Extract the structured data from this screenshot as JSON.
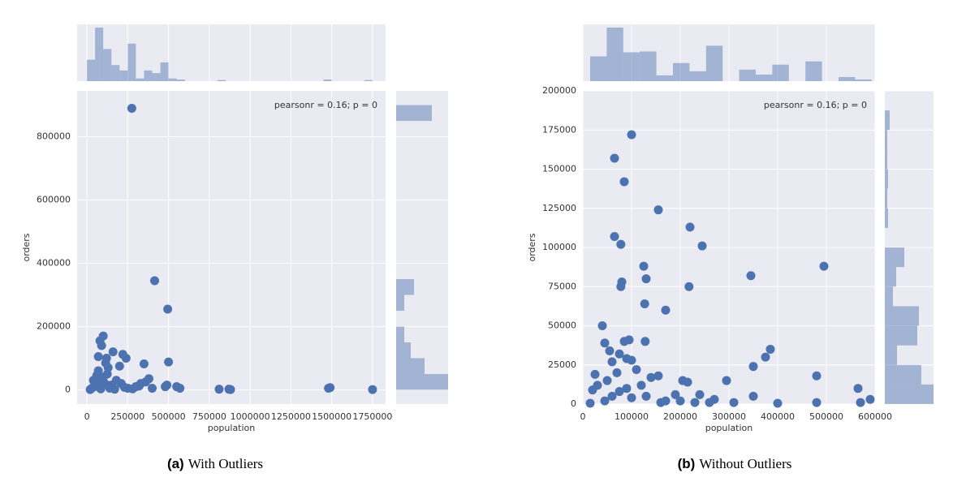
{
  "chart_data": [
    {
      "type": "scatter",
      "x_label": "population",
      "y_label": "orders",
      "annotation": "pearsonr = 0.16; p = 0",
      "caption_label": "(a)",
      "caption": "With Outliers",
      "color": "#4c72b0",
      "grid": true,
      "xlim": [
        -60000,
        1830000
      ],
      "ylim": [
        -45000,
        945000
      ],
      "xticks": [
        0,
        250000,
        500000,
        750000,
        1000000,
        1250000,
        1500000,
        1750000
      ],
      "yticks": [
        0,
        200000,
        400000,
        600000,
        800000
      ],
      "x": [
        275000,
        415000,
        495000,
        500000,
        350000,
        80000,
        100000,
        90000,
        70000,
        120000,
        160000,
        220000,
        240000,
        200000,
        60000,
        100000,
        130000,
        50000,
        30000,
        80000,
        150000,
        180000,
        210000,
        250000,
        300000,
        330000,
        380000,
        360000,
        400000,
        480000,
        490000,
        550000,
        570000,
        810000,
        870000,
        880000,
        1480000,
        1490000,
        1750000,
        20000,
        40000,
        70000,
        110000,
        140000,
        170000,
        230000,
        280000,
        320000,
        60000,
        95000,
        115000,
        125000,
        45000,
        85000
      ],
      "values": [
        890000,
        345000,
        255000,
        88000,
        82000,
        155000,
        170000,
        140000,
        105000,
        100000,
        120000,
        112000,
        100000,
        75000,
        45000,
        40000,
        70000,
        20000,
        5000,
        10000,
        15000,
        30000,
        20000,
        5000,
        10000,
        20000,
        35000,
        25000,
        5000,
        10000,
        15000,
        10000,
        5000,
        2000,
        2000,
        1000,
        5000,
        7000,
        1000,
        1000,
        30000,
        60000,
        20000,
        5000,
        2000,
        8000,
        3000,
        12000,
        25000,
        30000,
        85000,
        50000,
        10000,
        3000
      ],
      "x_hist": {
        "bins": [
          0,
          50000,
          100000,
          150000,
          200000,
          250000,
          300000,
          350000,
          400000,
          450000,
          500000,
          550000,
          600000,
          650000,
          700000,
          750000,
          800000,
          850000,
          900000,
          950000,
          1000000,
          1050000,
          1100000,
          1150000,
          1200000,
          1250000,
          1300000,
          1350000,
          1400000,
          1450000,
          1500000,
          1550000,
          1600000,
          1650000,
          1700000,
          1750000
        ],
        "counts": [
          4,
          10,
          6,
          3,
          2,
          7,
          0.5,
          2,
          1.5,
          3.5,
          0.5,
          0.3,
          0,
          0,
          0,
          0,
          0.2,
          0,
          0,
          0,
          0,
          0,
          0,
          0,
          0,
          0,
          0,
          0,
          0,
          0.3,
          0,
          0,
          0,
          0,
          0.2
        ]
      },
      "y_hist": {
        "bins": [
          0,
          50000,
          100000,
          150000,
          200000,
          250000,
          300000,
          350000,
          400000,
          450000,
          500000,
          550000,
          600000,
          650000,
          700000,
          750000,
          800000,
          850000,
          900000
        ],
        "counts": [
          64,
          35,
          18,
          10,
          0,
          10,
          22,
          0,
          0,
          0,
          0,
          0,
          0,
          0,
          0,
          0,
          0,
          44
        ]
      }
    },
    {
      "type": "scatter",
      "x_label": "population",
      "y_label": "orders",
      "annotation": "pearsonr = 0.16; p = 0",
      "caption_label": "(b)",
      "caption": "Without Outliers",
      "color": "#4c72b0",
      "grid": true,
      "xlim": [
        0,
        600000
      ],
      "ylim": [
        0,
        200000
      ],
      "xticks": [
        0,
        100000,
        200000,
        300000,
        400000,
        500000,
        600000
      ],
      "yticks": [
        0,
        25000,
        50000,
        75000,
        100000,
        125000,
        150000,
        175000,
        200000
      ],
      "x": [
        100000,
        65000,
        85000,
        155000,
        220000,
        245000,
        65000,
        78000,
        125000,
        495000,
        345000,
        130000,
        80000,
        78000,
        218000,
        127000,
        170000,
        40000,
        45000,
        95000,
        85000,
        128000,
        385000,
        55000,
        75000,
        375000,
        90000,
        100000,
        60000,
        350000,
        110000,
        70000,
        25000,
        155000,
        480000,
        140000,
        205000,
        295000,
        215000,
        30000,
        120000,
        565000,
        20000,
        75000,
        190000,
        240000,
        350000,
        60000,
        100000,
        590000,
        270000,
        200000,
        45000,
        160000,
        230000,
        310000,
        400000,
        480000,
        570000,
        15000,
        50000,
        90000,
        130000,
        170000,
        260000
      ],
      "values": [
        172000,
        157000,
        142000,
        124000,
        113000,
        101000,
        107000,
        102000,
        88000,
        88000,
        82000,
        80000,
        78000,
        75000,
        75000,
        64000,
        60000,
        50000,
        39000,
        41000,
        40000,
        40000,
        35000,
        34000,
        32000,
        30000,
        29000,
        28000,
        27000,
        24000,
        22000,
        20000,
        19000,
        18000,
        18000,
        17000,
        15000,
        15000,
        14000,
        12000,
        12000,
        10000,
        9000,
        8000,
        6000,
        6000,
        5000,
        5000,
        4000,
        3000,
        3000,
        2000,
        2000,
        1000,
        1000,
        1000,
        500,
        1000,
        1000,
        500,
        15000,
        10000,
        5000,
        2000,
        1000
      ],
      "x_hist": {
        "bins": [
          15000,
          49000,
          83000,
          117000,
          151000,
          185000,
          219000,
          253000,
          287000,
          321000,
          355000,
          389000,
          423000,
          457000,
          491000,
          525000,
          559000,
          593000
        ],
        "counts": [
          30,
          65,
          35,
          36,
          7,
          22,
          12,
          43,
          0,
          14,
          8,
          20,
          0,
          24,
          0,
          5,
          2
        ]
      },
      "y_hist": {
        "bins": [
          0,
          12500,
          25000,
          37500,
          50000,
          62500,
          75000,
          87500,
          100000,
          112500,
          125000,
          137500,
          150000,
          162500,
          175000,
          187500,
          200000
        ],
        "counts": [
          60,
          45,
          15,
          40,
          42,
          10,
          14,
          24,
          0,
          4,
          3,
          4,
          3,
          3,
          6,
          0
        ]
      }
    }
  ]
}
